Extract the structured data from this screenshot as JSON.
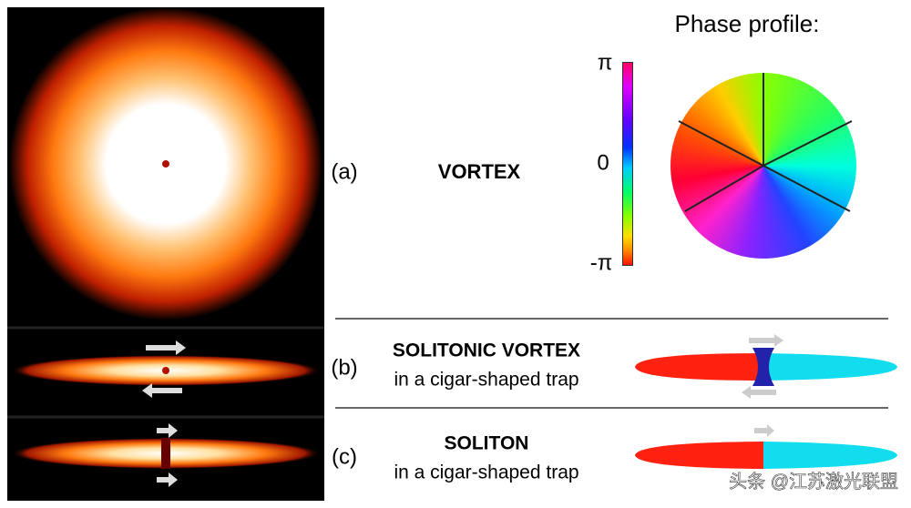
{
  "phase_profile": {
    "title": "Phase profile:",
    "colorbar_labels": [
      "π",
      "0",
      "-π"
    ]
  },
  "panels": [
    {
      "label": "(a)",
      "title": "VORTEX"
    },
    {
      "label": "(b)",
      "title": "SOLITONIC VORTEX",
      "subtitle": "in a cigar-shaped trap"
    },
    {
      "label": "(c)",
      "title": "SOLITON",
      "subtitle": "in a cigar-shaped trap"
    }
  ],
  "watermark": "头条 @江苏激光联盟"
}
